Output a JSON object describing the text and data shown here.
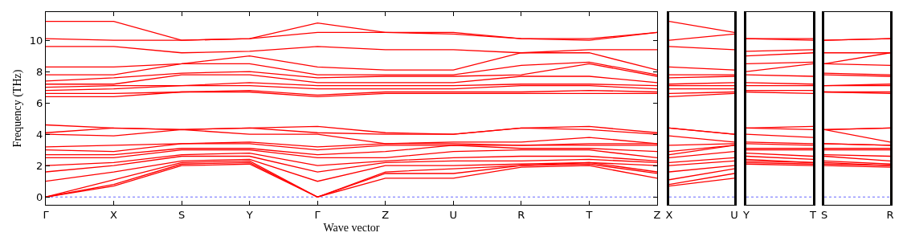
{
  "chart_data": [
    {
      "type": "line",
      "xlabel": "Wave vector",
      "ylabel": "Frequency (THz)",
      "line_style": "solid",
      "marker": "none",
      "categories": [
        "Γ",
        "X",
        "S",
        "Y",
        "Γ",
        "Z",
        "U",
        "R",
        "T",
        "Z"
      ],
      "ylim": [
        -0.5,
        11.8
      ],
      "yticks": [
        0,
        2,
        4,
        6,
        8,
        10
      ],
      "ref_lines": [
        {
          "axis": "y",
          "value": 0,
          "color": "#0000ff",
          "line_style": "dotted"
        }
      ],
      "series": [
        {
          "color": "#ff0000",
          "values": [
            0,
            0.7,
            2.0,
            2.1,
            0,
            1.2,
            1.2,
            1.9,
            2.0,
            1.2
          ]
        },
        {
          "color": "#ff0000",
          "values": [
            0,
            0.8,
            2.1,
            2.2,
            0,
            1.5,
            1.5,
            2.0,
            2.1,
            1.5
          ]
        },
        {
          "color": "#ff0000",
          "values": [
            0,
            1.1,
            2.2,
            2.3,
            0,
            1.6,
            1.8,
            2.0,
            2.2,
            1.6
          ]
        },
        {
          "color": "#ff0000",
          "values": [
            1.0,
            1.6,
            2.3,
            2.4,
            1.0,
            2.0,
            2.0,
            2.1,
            2.2,
            2.0
          ]
        },
        {
          "color": "#ff0000",
          "values": [
            1.6,
            2.0,
            2.6,
            2.6,
            1.6,
            2.2,
            2.3,
            2.3,
            2.4,
            2.2
          ]
        },
        {
          "color": "#ff0000",
          "values": [
            2.0,
            2.2,
            2.7,
            2.8,
            2.0,
            2.3,
            2.5,
            2.6,
            2.6,
            2.3
          ]
        },
        {
          "color": "#ff0000",
          "values": [
            2.5,
            2.5,
            3.0,
            3.0,
            2.5,
            2.5,
            2.9,
            3.0,
            3.0,
            2.5
          ]
        },
        {
          "color": "#ff0000",
          "values": [
            2.7,
            2.7,
            3.1,
            3.1,
            2.7,
            2.9,
            3.3,
            3.1,
            3.1,
            2.9
          ]
        },
        {
          "color": "#ff0000",
          "values": [
            3.0,
            2.9,
            3.4,
            3.4,
            3.0,
            3.3,
            3.3,
            3.3,
            3.3,
            3.3
          ]
        },
        {
          "color": "#ff0000",
          "values": [
            3.2,
            3.3,
            3.4,
            3.5,
            3.2,
            3.4,
            3.4,
            3.3,
            3.4,
            3.4
          ]
        },
        {
          "color": "#ff0000",
          "values": [
            4.0,
            3.9,
            4.3,
            4.0,
            4.0,
            3.4,
            3.5,
            3.5,
            3.8,
            3.4
          ]
        },
        {
          "color": "#ff0000",
          "values": [
            4.1,
            4.4,
            4.3,
            4.4,
            4.1,
            4.0,
            4.0,
            4.4,
            4.3,
            4.0
          ]
        },
        {
          "color": "#ff0000",
          "values": [
            4.6,
            4.4,
            4.3,
            4.4,
            4.5,
            4.1,
            4.0,
            4.4,
            4.5,
            4.1
          ]
        },
        {
          "color": "#ff0000",
          "values": [
            6.4,
            6.4,
            6.7,
            6.7,
            6.4,
            6.6,
            6.6,
            6.6,
            6.6,
            6.6
          ]
        },
        {
          "color": "#ff0000",
          "values": [
            6.6,
            6.6,
            6.7,
            6.8,
            6.5,
            6.7,
            6.7,
            6.7,
            6.8,
            6.7
          ]
        },
        {
          "color": "#ff0000",
          "values": [
            6.8,
            6.9,
            7.1,
            7.1,
            6.9,
            6.9,
            6.9,
            7.1,
            7.1,
            6.9
          ]
        },
        {
          "color": "#ff0000",
          "values": [
            7.0,
            7.1,
            7.1,
            7.3,
            7.1,
            7.1,
            7.1,
            7.2,
            7.2,
            7.1
          ]
        },
        {
          "color": "#ff0000",
          "values": [
            7.2,
            7.2,
            7.8,
            7.8,
            7.3,
            7.3,
            7.3,
            7.7,
            7.7,
            7.3
          ]
        },
        {
          "color": "#ff0000",
          "values": [
            7.4,
            7.6,
            7.9,
            8.0,
            7.6,
            7.7,
            7.7,
            7.8,
            8.5,
            7.7
          ]
        },
        {
          "color": "#ff0000",
          "values": [
            7.8,
            7.8,
            8.5,
            8.5,
            7.8,
            7.8,
            7.8,
            8.4,
            8.6,
            7.8
          ]
        },
        {
          "color": "#ff0000",
          "values": [
            8.3,
            8.3,
            8.5,
            9.0,
            8.3,
            8.1,
            8.1,
            9.2,
            9.2,
            8.1
          ]
        },
        {
          "color": "#ff0000",
          "values": [
            9.6,
            9.6,
            9.2,
            9.3,
            9.6,
            9.4,
            9.4,
            9.2,
            9.4,
            9.4
          ]
        },
        {
          "color": "#ff0000",
          "values": [
            10.1,
            10.0,
            10.0,
            10.1,
            10.5,
            10.5,
            10.4,
            10.1,
            10.0,
            10.5
          ]
        },
        {
          "color": "#ff0000",
          "values": [
            11.2,
            11.2,
            10.0,
            10.1,
            11.1,
            10.5,
            10.5,
            10.1,
            10.1,
            10.5
          ]
        }
      ]
    },
    {
      "type": "line",
      "line_style": "solid",
      "marker": "none",
      "tick_labels": "x",
      "categories": [
        "X",
        "U"
      ],
      "ylim": [
        -0.5,
        11.8
      ],
      "ref_lines": [
        {
          "axis": "y",
          "value": 0,
          "color": "#0000ff",
          "line_style": "dotted"
        }
      ],
      "series": [
        {
          "color": "#ff0000",
          "values": [
            0.7,
            1.2
          ]
        },
        {
          "color": "#ff0000",
          "values": [
            0.8,
            1.5
          ]
        },
        {
          "color": "#ff0000",
          "values": [
            1.1,
            1.8
          ]
        },
        {
          "color": "#ff0000",
          "values": [
            1.6,
            2.0
          ]
        },
        {
          "color": "#ff0000",
          "values": [
            2.0,
            2.3
          ]
        },
        {
          "color": "#ff0000",
          "values": [
            2.2,
            2.5
          ]
        },
        {
          "color": "#ff0000",
          "values": [
            2.5,
            2.9
          ]
        },
        {
          "color": "#ff0000",
          "values": [
            2.7,
            3.3
          ]
        },
        {
          "color": "#ff0000",
          "values": [
            2.9,
            3.3
          ]
        },
        {
          "color": "#ff0000",
          "values": [
            3.3,
            3.4
          ]
        },
        {
          "color": "#ff0000",
          "values": [
            3.9,
            3.5
          ]
        },
        {
          "color": "#ff0000",
          "values": [
            4.4,
            4.0
          ]
        },
        {
          "color": "#ff0000",
          "values": [
            4.4,
            4.0
          ]
        },
        {
          "color": "#ff0000",
          "values": [
            6.4,
            6.6
          ]
        },
        {
          "color": "#ff0000",
          "values": [
            6.6,
            6.7
          ]
        },
        {
          "color": "#ff0000",
          "values": [
            6.9,
            6.9
          ]
        },
        {
          "color": "#ff0000",
          "values": [
            7.1,
            7.1
          ]
        },
        {
          "color": "#ff0000",
          "values": [
            7.2,
            7.3
          ]
        },
        {
          "color": "#ff0000",
          "values": [
            7.6,
            7.7
          ]
        },
        {
          "color": "#ff0000",
          "values": [
            7.8,
            7.8
          ]
        },
        {
          "color": "#ff0000",
          "values": [
            8.3,
            8.1
          ]
        },
        {
          "color": "#ff0000",
          "values": [
            9.6,
            9.4
          ]
        },
        {
          "color": "#ff0000",
          "values": [
            10.0,
            10.4
          ]
        },
        {
          "color": "#ff0000",
          "values": [
            11.2,
            10.5
          ]
        }
      ]
    },
    {
      "type": "line",
      "line_style": "solid",
      "marker": "none",
      "tick_labels": "x",
      "categories": [
        "Y",
        "T"
      ],
      "ylim": [
        -0.5,
        11.8
      ],
      "ref_lines": [
        {
          "axis": "y",
          "value": 0,
          "color": "#0000ff",
          "line_style": "dotted"
        }
      ],
      "series": [
        {
          "color": "#ff0000",
          "values": [
            2.1,
            2.0
          ]
        },
        {
          "color": "#ff0000",
          "values": [
            2.2,
            2.1
          ]
        },
        {
          "color": "#ff0000",
          "values": [
            2.3,
            2.2
          ]
        },
        {
          "color": "#ff0000",
          "values": [
            2.4,
            2.2
          ]
        },
        {
          "color": "#ff0000",
          "values": [
            2.6,
            2.4
          ]
        },
        {
          "color": "#ff0000",
          "values": [
            2.8,
            2.6
          ]
        },
        {
          "color": "#ff0000",
          "values": [
            3.0,
            3.0
          ]
        },
        {
          "color": "#ff0000",
          "values": [
            3.1,
            3.1
          ]
        },
        {
          "color": "#ff0000",
          "values": [
            3.4,
            3.3
          ]
        },
        {
          "color": "#ff0000",
          "values": [
            3.5,
            3.4
          ]
        },
        {
          "color": "#ff0000",
          "values": [
            4.0,
            3.8
          ]
        },
        {
          "color": "#ff0000",
          "values": [
            4.4,
            4.3
          ]
        },
        {
          "color": "#ff0000",
          "values": [
            4.4,
            4.5
          ]
        },
        {
          "color": "#ff0000",
          "values": [
            6.7,
            6.6
          ]
        },
        {
          "color": "#ff0000",
          "values": [
            6.8,
            6.8
          ]
        },
        {
          "color": "#ff0000",
          "values": [
            7.1,
            7.1
          ]
        },
        {
          "color": "#ff0000",
          "values": [
            7.3,
            7.2
          ]
        },
        {
          "color": "#ff0000",
          "values": [
            7.8,
            7.7
          ]
        },
        {
          "color": "#ff0000",
          "values": [
            8.0,
            8.5
          ]
        },
        {
          "color": "#ff0000",
          "values": [
            8.5,
            8.6
          ]
        },
        {
          "color": "#ff0000",
          "values": [
            9.0,
            9.2
          ]
        },
        {
          "color": "#ff0000",
          "values": [
            9.3,
            9.4
          ]
        },
        {
          "color": "#ff0000",
          "values": [
            10.1,
            10.0
          ]
        },
        {
          "color": "#ff0000",
          "values": [
            10.1,
            10.1
          ]
        }
      ]
    },
    {
      "type": "line",
      "line_style": "solid",
      "marker": "none",
      "tick_labels": "x",
      "categories": [
        "S",
        "R"
      ],
      "ylim": [
        -0.5,
        11.8
      ],
      "ref_lines": [
        {
          "axis": "y",
          "value": 0,
          "color": "#0000ff",
          "line_style": "dotted"
        }
      ],
      "series": [
        {
          "color": "#ff0000",
          "values": [
            2.0,
            1.9
          ]
        },
        {
          "color": "#ff0000",
          "values": [
            2.1,
            2.0
          ]
        },
        {
          "color": "#ff0000",
          "values": [
            2.2,
            2.0
          ]
        },
        {
          "color": "#ff0000",
          "values": [
            2.3,
            2.1
          ]
        },
        {
          "color": "#ff0000",
          "values": [
            2.6,
            2.3
          ]
        },
        {
          "color": "#ff0000",
          "values": [
            2.7,
            2.6
          ]
        },
        {
          "color": "#ff0000",
          "values": [
            3.0,
            3.0
          ]
        },
        {
          "color": "#ff0000",
          "values": [
            3.1,
            3.1
          ]
        },
        {
          "color": "#ff0000",
          "values": [
            3.4,
            3.3
          ]
        },
        {
          "color": "#ff0000",
          "values": [
            3.4,
            3.3
          ]
        },
        {
          "color": "#ff0000",
          "values": [
            4.3,
            3.5
          ]
        },
        {
          "color": "#ff0000",
          "values": [
            4.3,
            4.4
          ]
        },
        {
          "color": "#ff0000",
          "values": [
            4.3,
            4.4
          ]
        },
        {
          "color": "#ff0000",
          "values": [
            6.7,
            6.6
          ]
        },
        {
          "color": "#ff0000",
          "values": [
            6.7,
            6.7
          ]
        },
        {
          "color": "#ff0000",
          "values": [
            7.1,
            7.1
          ]
        },
        {
          "color": "#ff0000",
          "values": [
            7.1,
            7.2
          ]
        },
        {
          "color": "#ff0000",
          "values": [
            7.8,
            7.7
          ]
        },
        {
          "color": "#ff0000",
          "values": [
            7.9,
            7.8
          ]
        },
        {
          "color": "#ff0000",
          "values": [
            8.5,
            8.4
          ]
        },
        {
          "color": "#ff0000",
          "values": [
            8.5,
            9.2
          ]
        },
        {
          "color": "#ff0000",
          "values": [
            9.2,
            9.2
          ]
        },
        {
          "color": "#ff0000",
          "values": [
            10.0,
            10.1
          ]
        },
        {
          "color": "#ff0000",
          "values": [
            10.0,
            10.1
          ]
        }
      ]
    }
  ]
}
